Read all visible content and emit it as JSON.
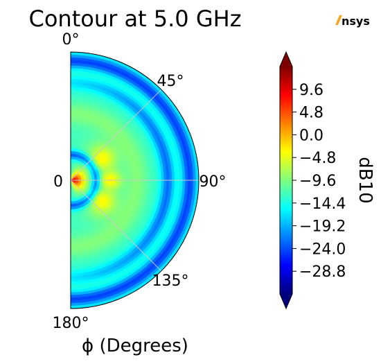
{
  "chart_data": {
    "type": "heatmap",
    "projection": "polar-half",
    "title": "Contour at 5.0 GHz",
    "xlabel": "ϕ (Degrees)",
    "colorbar_label": "dB10",
    "colormap": "jet",
    "range": [
      -33.6,
      14.4
    ],
    "angle_ticks": [
      "0°",
      "45°",
      "90°",
      "135°",
      "180°"
    ],
    "radial_tick": "0",
    "colorbar_ticks": [
      "9.6",
      "4.8",
      "0.0",
      "−4.8",
      "−9.6",
      "−14.4",
      "−19.2",
      "−24.0",
      "−28.8"
    ],
    "colorbar_tick_values": [
      9.6,
      4.8,
      0.0,
      -4.8,
      -9.6,
      -14.4,
      -19.2,
      -24.0,
      -28.8
    ],
    "grid": true,
    "colors": {
      "grid": "#c8c8c8",
      "outline": "#000000",
      "logo_accent": "#f5a623"
    }
  },
  "branding": {
    "logo_text": "nsys"
  }
}
